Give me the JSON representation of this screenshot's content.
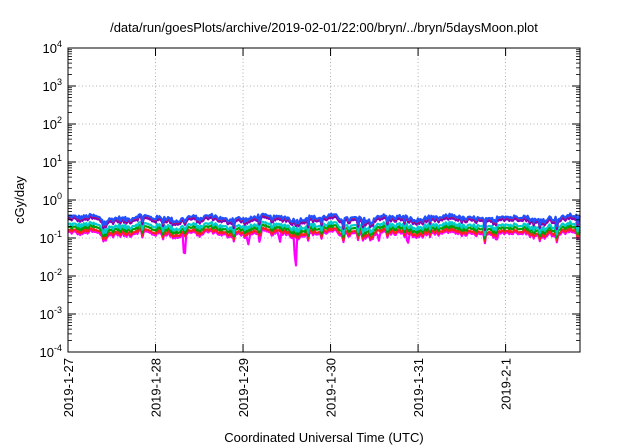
{
  "chart_data": {
    "type": "line",
    "title": "/data/run/goesPlots/archive/2019-02-01/22:00/bryn/../bryn/5daysMoon.plot",
    "xlabel": "Coordinated Universal Time (UTC)",
    "ylabel": "cGy/day",
    "y_scale": "log",
    "ylim": [
      0.0001,
      10000
    ],
    "y_ticks": [
      {
        "value": 0.0001,
        "base": "10",
        "exp": "-4"
      },
      {
        "value": 0.001,
        "base": "10",
        "exp": "-3"
      },
      {
        "value": 0.01,
        "base": "10",
        "exp": "-2"
      },
      {
        "value": 0.1,
        "base": "10",
        "exp": "-1"
      },
      {
        "value": 1,
        "base": "10",
        "exp": "0"
      },
      {
        "value": 10,
        "base": "10",
        "exp": "1"
      },
      {
        "value": 100,
        "base": "10",
        "exp": "2"
      },
      {
        "value": 1000,
        "base": "10",
        "exp": "3"
      },
      {
        "value": 10000,
        "base": "10",
        "exp": "4"
      }
    ],
    "x_range_days": [
      0,
      5.85
    ],
    "x_ticks": [
      {
        "day": 0,
        "label": "2019-1-27"
      },
      {
        "day": 1,
        "label": "2019-1-28"
      },
      {
        "day": 2,
        "label": "2019-1-29"
      },
      {
        "day": 3,
        "label": "2019-1-30"
      },
      {
        "day": 4,
        "label": "2019-1-31"
      },
      {
        "day": 5,
        "label": "2019-2-1"
      }
    ],
    "grid": true,
    "series": [
      {
        "color": "#ff00ff",
        "base": 0.13,
        "dips": [
          [
            1.33,
            0.022
          ],
          [
            2.06,
            0.065
          ],
          [
            2.19,
            0.075
          ],
          [
            2.42,
            0.07
          ],
          [
            2.6,
            0.011
          ],
          [
            3.55,
            0.08
          ],
          [
            3.88,
            0.06
          ],
          [
            4.9,
            0.085
          ]
        ]
      },
      {
        "color": "#ff2020",
        "base": 0.145,
        "dips": []
      },
      {
        "color": "#00a000",
        "base": 0.175,
        "dips": []
      },
      {
        "color": "#00cccc",
        "base": 0.21,
        "dips": []
      },
      {
        "color": "#8000c0",
        "base": 0.29,
        "dips": []
      },
      {
        "color": "#ff0000",
        "base": 0.33,
        "dips": []
      },
      {
        "color": "#2050ff",
        "base": 0.34,
        "dips": []
      }
    ]
  }
}
